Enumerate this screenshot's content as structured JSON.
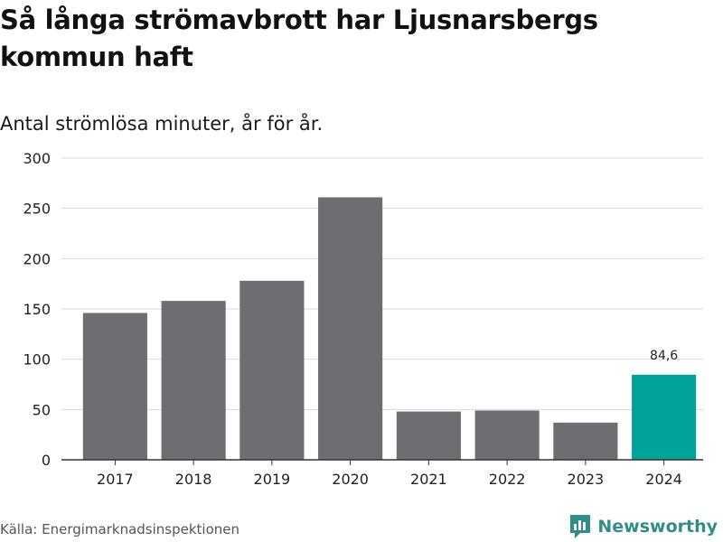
{
  "header": {
    "title": "Så långa strömavbrott har Ljusnarsbergs kommun haft",
    "subtitle": "Antal strömlösa minuter, år för år."
  },
  "footer": {
    "source": "Källa: Energimarknadsinspektionen",
    "brand": "Newsworthy",
    "brand_icon": "newsworthy-logo-icon"
  },
  "colors": {
    "bar": "#6e6d72",
    "highlight": "#00a398",
    "grid": "#d9d9d9",
    "axis": "#333333"
  },
  "chart_data": {
    "type": "bar",
    "title": "Så långa strömavbrott har Ljusnarsbergs kommun haft",
    "subtitle": "Antal strömlösa minuter, år för år.",
    "categories": [
      "2017",
      "2018",
      "2019",
      "2020",
      "2021",
      "2022",
      "2023",
      "2024"
    ],
    "values": [
      146,
      158,
      178,
      261,
      48,
      49,
      37,
      84.6
    ],
    "highlight_index": 7,
    "data_labels": [
      {
        "index": 7,
        "text": "84,6"
      }
    ],
    "ylim": [
      0,
      300
    ],
    "yticks": [
      0,
      50,
      100,
      150,
      200,
      250,
      300
    ],
    "xlabel": "",
    "ylabel": "",
    "grid": true
  }
}
